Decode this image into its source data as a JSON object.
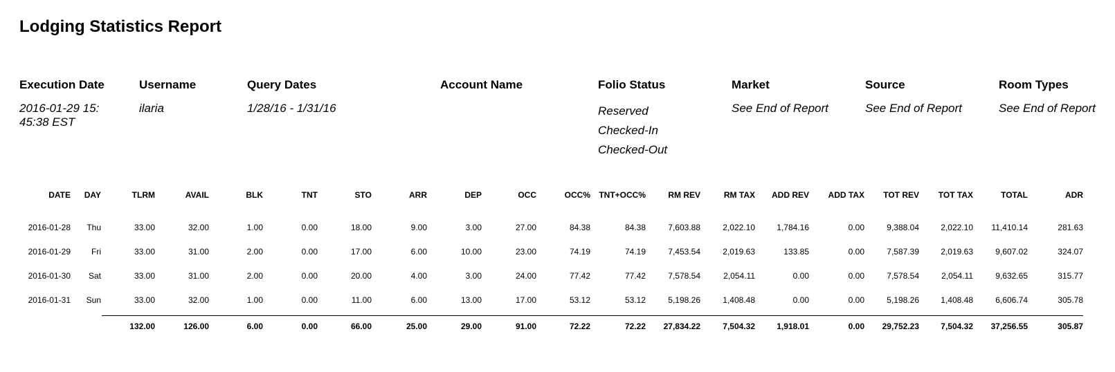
{
  "report": {
    "title": "Lodging Statistics Report"
  },
  "meta": {
    "execution_date": {
      "label": "Execution Date",
      "value": "2016-01-29 15:\n45:38 EST"
    },
    "username": {
      "label": "Username",
      "value": "ilaria"
    },
    "query_dates": {
      "label": "Query Dates",
      "value": "1/28/16 - 1/31/16"
    },
    "account_name": {
      "label": "Account Name",
      "value": ""
    },
    "folio_status": {
      "label": "Folio Status",
      "values": [
        "Reserved",
        "Checked-In",
        "Checked-Out"
      ]
    },
    "market": {
      "label": "Market",
      "value": "See End of Report"
    },
    "source": {
      "label": "Source",
      "value": "See End of Report"
    },
    "room_types": {
      "label": "Room Types",
      "value": "See End of Report"
    }
  },
  "table": {
    "columns": [
      "DATE",
      "DAY",
      "TLRM",
      "AVAIL",
      "BLK",
      "TNT",
      "STO",
      "ARR",
      "DEP",
      "OCC",
      "OCC%",
      "TNT+OCC%",
      "RM REV",
      "RM TAX",
      "ADD REV",
      "ADD TAX",
      "TOT REV",
      "TOT TAX",
      "TOTAL",
      "ADR"
    ],
    "rows": [
      [
        "2016-01-28",
        "Thu",
        "33.00",
        "32.00",
        "1.00",
        "0.00",
        "18.00",
        "9.00",
        "3.00",
        "27.00",
        "84.38",
        "84.38",
        "7,603.88",
        "2,022.10",
        "1,784.16",
        "0.00",
        "9,388.04",
        "2,022.10",
        "11,410.14",
        "281.63"
      ],
      [
        "2016-01-29",
        "Fri",
        "33.00",
        "31.00",
        "2.00",
        "0.00",
        "17.00",
        "6.00",
        "10.00",
        "23.00",
        "74.19",
        "74.19",
        "7,453.54",
        "2,019.63",
        "133.85",
        "0.00",
        "7,587.39",
        "2,019.63",
        "9,607.02",
        "324.07"
      ],
      [
        "2016-01-30",
        "Sat",
        "33.00",
        "31.00",
        "2.00",
        "0.00",
        "20.00",
        "4.00",
        "3.00",
        "24.00",
        "77.42",
        "77.42",
        "7,578.54",
        "2,054.11",
        "0.00",
        "0.00",
        "7,578.54",
        "2,054.11",
        "9,632.65",
        "315.77"
      ],
      [
        "2016-01-31",
        "Sun",
        "33.00",
        "32.00",
        "1.00",
        "0.00",
        "11.00",
        "6.00",
        "13.00",
        "17.00",
        "53.12",
        "53.12",
        "5,198.26",
        "1,408.48",
        "0.00",
        "0.00",
        "5,198.26",
        "1,408.48",
        "6,606.74",
        "305.78"
      ]
    ],
    "totals": [
      "",
      "",
      "132.00",
      "126.00",
      "6.00",
      "0.00",
      "66.00",
      "25.00",
      "29.00",
      "91.00",
      "72.22",
      "72.22",
      "27,834.22",
      "7,504.32",
      "1,918.01",
      "0.00",
      "29,752.23",
      "7,504.32",
      "37,256.55",
      "305.87"
    ]
  }
}
